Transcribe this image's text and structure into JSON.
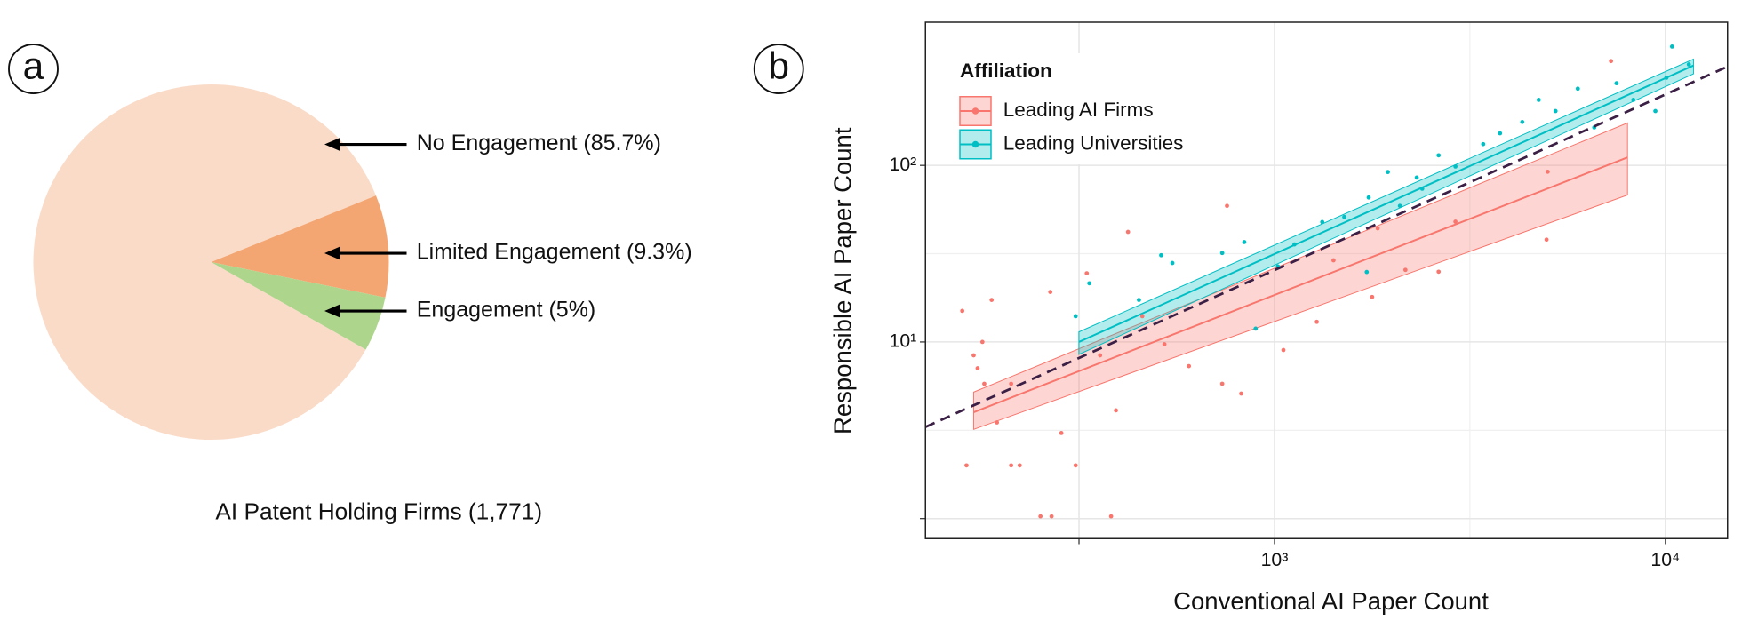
{
  "chart_data": [
    {
      "type": "pie",
      "panel_label": "a",
      "title": "AI Patent Holding Firms (1,771)",
      "categories": [
        "No Engagement",
        "Limited Engagement",
        "Engagement"
      ],
      "values": [
        85.7,
        9.3,
        5
      ],
      "value_labels": [
        "No Engagement (85.7%)",
        "Limited Engagement (9.3%)",
        "Engagement (5%)"
      ],
      "colors": [
        "#fadbc8",
        "#f4a672",
        "#aed58c"
      ]
    },
    {
      "type": "scatter",
      "panel_label": "b",
      "xlabel": "Conventional AI Paper Count",
      "ylabel": "Responsible AI Paper Count",
      "xscale": "log",
      "yscale": "log",
      "xlim": [
        128,
        14420
      ],
      "ylim": [
        0.77,
        647
      ],
      "xticks": [
        {
          "value": 316.2,
          "label": null
        },
        {
          "value": 1000,
          "label": "10³"
        },
        {
          "value": 10000,
          "label": "10⁴"
        }
      ],
      "yticks": [
        {
          "value": 1,
          "label": null
        },
        {
          "value": 10,
          "label": "10¹"
        },
        {
          "value": 100,
          "label": "10²"
        }
      ],
      "xgrid_minor": [
        316.2,
        3162
      ],
      "ygrid_minor": [
        3.162,
        31.62
      ],
      "grid": true,
      "legend_title": "Affiliation",
      "legend": "top-left",
      "reference_line": {
        "x": [
          128,
          14420
        ],
        "values": [
          3.3,
          363
        ],
        "color": "#3b1f45"
      },
      "series": [
        {
          "name": "Leading AI Firms",
          "color": "#f8766d",
          "x": [
            159,
            163,
            170,
            174,
            179,
            189,
            181,
            195,
            212,
            212,
            223,
            252,
            269,
            267,
            285,
            310,
            331,
            358,
            382,
            393,
            422,
            459,
            523,
            604,
            735,
            756,
            822,
            1054,
            1283,
            1778,
            1416,
            2163,
            2630,
            4966,
            5000,
            7260,
            2904,
            1837
          ],
          "values": [
            15,
            2,
            8.4,
            7.1,
            10,
            17.3,
            5.8,
            3.5,
            5.8,
            2,
            2,
            1.03,
            1.03,
            19.2,
            3.05,
            2,
            24.5,
            8.4,
            1.03,
            4.1,
            42,
            14,
            9.7,
            7.3,
            5.8,
            59,
            5.1,
            9,
            13,
            18,
            29,
            25.6,
            25,
            38,
            92,
            390,
            48,
            44
          ],
          "fit_x": [
            170,
            8000
          ],
          "fit": [
            4.0,
            111
          ],
          "fit_lower": [
            3.2,
            68
          ],
          "fit_upper": [
            5.2,
            174
          ]
        },
        {
          "name": "Leading Universities",
          "color": "#00bfc4",
          "x": [
            310,
            336,
            450,
            513,
            548,
            735,
            837,
            895,
            1020,
            1125,
            1325,
            1509,
            1742,
            1950,
            2094,
            2388,
            2630,
            2904,
            3420,
            3776,
            4305,
            4742,
            5236,
            5970,
            6577,
            7499,
            8279,
            9427,
            10060,
            10400,
            11480,
            1722,
            2312
          ],
          "values": [
            14,
            21.5,
            17.3,
            31,
            28,
            31.9,
            36.8,
            11.9,
            26.8,
            35.7,
            47.8,
            51,
            65.8,
            91.7,
            59,
            73.8,
            114,
            98.6,
            132,
            152,
            176,
            235,
            203,
            272,
            164,
            292,
            235,
            203,
            314,
            471,
            373,
            24.9,
            85.3
          ],
          "fit_x": [
            316,
            11800
          ],
          "fit": [
            10,
            368
          ],
          "fit_lower": [
            8.5,
            330
          ],
          "fit_upper": [
            11.4,
            400
          ]
        }
      ]
    }
  ]
}
